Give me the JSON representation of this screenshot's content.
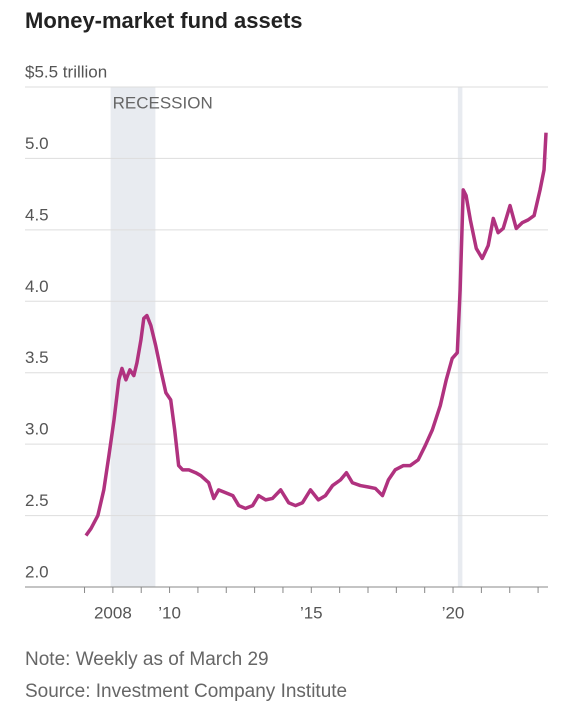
{
  "chart_data": {
    "type": "line",
    "title": "Money-market fund assets",
    "annotation": "RECESSION",
    "note": "Note: Weekly as of March 29",
    "source": "Source: Investment Company Institute",
    "shaded": [
      [
        2007.92,
        2009.5
      ],
      [
        2020.17,
        2020.33
      ]
    ],
    "color": "#b0327f",
    "grid": true,
    "xlim": [
      2004.9,
      2023.35
    ],
    "ylim": [
      2.0,
      5.5
    ],
    "yticks": [
      {
        "value": 2.0,
        "label": "2.0"
      },
      {
        "value": 2.5,
        "label": "2.5"
      },
      {
        "value": 3.0,
        "label": "3.0"
      },
      {
        "value": 3.5,
        "label": "3.5"
      },
      {
        "value": 4.0,
        "label": "4.0"
      },
      {
        "value": 4.5,
        "label": "4.5"
      },
      {
        "value": 5.0,
        "label": "5.0"
      },
      {
        "value": 5.5,
        "label": "$5.5 trillion"
      }
    ],
    "xticks": [
      {
        "value": 2007,
        "label": null
      },
      {
        "value": 2008,
        "label": "2008"
      },
      {
        "value": 2009,
        "label": null
      },
      {
        "value": 2010,
        "label": "’10"
      },
      {
        "value": 2011,
        "label": null
      },
      {
        "value": 2012,
        "label": null
      },
      {
        "value": 2013,
        "label": null
      },
      {
        "value": 2014,
        "label": null
      },
      {
        "value": 2015,
        "label": "’15"
      },
      {
        "value": 2016,
        "label": null
      },
      {
        "value": 2017,
        "label": null
      },
      {
        "value": 2018,
        "label": null
      },
      {
        "value": 2019,
        "label": null
      },
      {
        "value": 2020,
        "label": "’20"
      },
      {
        "value": 2021,
        "label": null
      },
      {
        "value": 2022,
        "label": null
      },
      {
        "value": 2023,
        "label": null
      }
    ],
    "x": [
      2007.05,
      2007.23,
      2007.47,
      2007.68,
      2007.86,
      2008.04,
      2008.21,
      2008.32,
      2008.46,
      2008.6,
      2008.74,
      2008.85,
      2008.99,
      2009.09,
      2009.2,
      2009.34,
      2009.51,
      2009.69,
      2009.87,
      2010.04,
      2010.18,
      2010.32,
      2010.46,
      2010.68,
      2010.92,
      2011.1,
      2011.38,
      2011.56,
      2011.73,
      2011.98,
      2012.23,
      2012.44,
      2012.68,
      2012.93,
      2013.14,
      2013.39,
      2013.63,
      2013.92,
      2014.2,
      2014.44,
      2014.69,
      2014.97,
      2015.25,
      2015.5,
      2015.75,
      2016.03,
      2016.24,
      2016.45,
      2016.73,
      2017.01,
      2017.26,
      2017.51,
      2017.72,
      2017.96,
      2018.25,
      2018.49,
      2018.77,
      2019.02,
      2019.27,
      2019.55,
      2019.76,
      2019.97,
      2020.15,
      2020.25,
      2020.36,
      2020.46,
      2020.61,
      2020.82,
      2021.03,
      2021.24,
      2021.42,
      2021.59,
      2021.77,
      2022.01,
      2022.23,
      2022.44,
      2022.65,
      2022.86,
      2023.07,
      2023.21,
      2023.28
    ],
    "values": [
      2.36,
      2.41,
      2.5,
      2.68,
      2.92,
      3.17,
      3.45,
      3.53,
      3.45,
      3.52,
      3.48,
      3.57,
      3.73,
      3.88,
      3.9,
      3.83,
      3.69,
      3.52,
      3.36,
      3.31,
      3.1,
      2.85,
      2.82,
      2.82,
      2.8,
      2.78,
      2.73,
      2.62,
      2.68,
      2.66,
      2.64,
      2.57,
      2.55,
      2.57,
      2.64,
      2.61,
      2.62,
      2.68,
      2.59,
      2.57,
      2.59,
      2.68,
      2.61,
      2.64,
      2.71,
      2.75,
      2.8,
      2.73,
      2.71,
      2.7,
      2.69,
      2.64,
      2.75,
      2.82,
      2.85,
      2.85,
      2.89,
      2.99,
      3.1,
      3.27,
      3.45,
      3.6,
      3.64,
      4.08,
      4.78,
      4.74,
      4.57,
      4.37,
      4.3,
      4.39,
      4.58,
      4.48,
      4.51,
      4.67,
      4.51,
      4.55,
      4.57,
      4.6,
      4.78,
      4.92,
      5.18
    ]
  }
}
